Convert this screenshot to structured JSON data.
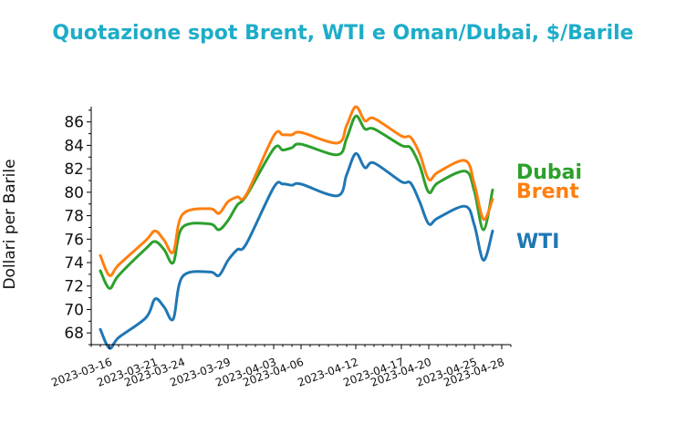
{
  "chart_data": {
    "type": "line",
    "title": "Quotazione spot Brent, WTI e Oman/Dubai, $/Barile",
    "xlabel": "",
    "ylabel": "Dollari per Barile",
    "ylim": [
      67,
      87.3
    ],
    "yticks": [
      68,
      70,
      72,
      74,
      76,
      78,
      80,
      82,
      84,
      86
    ],
    "xticks": [
      "2023-03-16",
      "2023-03-21",
      "2023-03-24",
      "2023-03-29",
      "2023-04-03",
      "2023-04-06",
      "2023-04-12",
      "2023-04-17",
      "2023-04-20",
      "2023-04-25",
      "2023-04-28"
    ],
    "x": [
      "2023-03-15",
      "2023-03-16",
      "2023-03-17",
      "2023-03-20",
      "2023-03-21",
      "2023-03-22",
      "2023-03-23",
      "2023-03-24",
      "2023-03-27",
      "2023-03-28",
      "2023-03-29",
      "2023-03-30",
      "2023-03-31",
      "2023-04-03",
      "2023-04-04",
      "2023-04-05",
      "2023-04-06",
      "2023-04-10",
      "2023-04-11",
      "2023-04-12",
      "2023-04-13",
      "2023-04-14",
      "2023-04-17",
      "2023-04-18",
      "2023-04-19",
      "2023-04-20",
      "2023-04-21",
      "2023-04-24",
      "2023-04-25",
      "2023-04-26",
      "2023-04-27"
    ],
    "series": [
      {
        "name": "Dubai",
        "color": "#2ca02c",
        "values": [
          73.3,
          71.8,
          72.9,
          75.2,
          75.8,
          75.1,
          74.0,
          77.0,
          77.3,
          76.8,
          77.6,
          78.9,
          79.7,
          83.7,
          83.6,
          83.8,
          84.1,
          83.2,
          84.6,
          86.5,
          85.4,
          85.4,
          84.0,
          83.8,
          82.3,
          80.0,
          80.8,
          81.8,
          80.1,
          76.8,
          80.2
        ]
      },
      {
        "name": "Brent",
        "color": "#ff7f0e",
        "values": [
          74.6,
          72.9,
          73.8,
          75.9,
          76.7,
          75.9,
          74.9,
          78.1,
          78.6,
          78.2,
          79.2,
          79.6,
          79.8,
          84.8,
          84.9,
          84.9,
          85.1,
          84.2,
          85.7,
          87.3,
          86.1,
          86.3,
          84.8,
          84.7,
          83.3,
          81.1,
          81.7,
          82.7,
          80.7,
          77.7,
          79.4
        ]
      },
      {
        "name": "WTI",
        "color": "#1f77b4",
        "values": [
          68.3,
          66.7,
          67.6,
          69.3,
          70.9,
          70.2,
          69.2,
          72.8,
          73.2,
          72.9,
          74.2,
          75.1,
          75.6,
          80.4,
          80.7,
          80.6,
          80.7,
          79.7,
          81.5,
          83.3,
          82.1,
          82.5,
          80.9,
          80.8,
          79.2,
          77.3,
          77.8,
          78.8,
          77.2,
          74.2,
          76.7
        ]
      }
    ],
    "legend": "right-inline",
    "grid": false
  }
}
